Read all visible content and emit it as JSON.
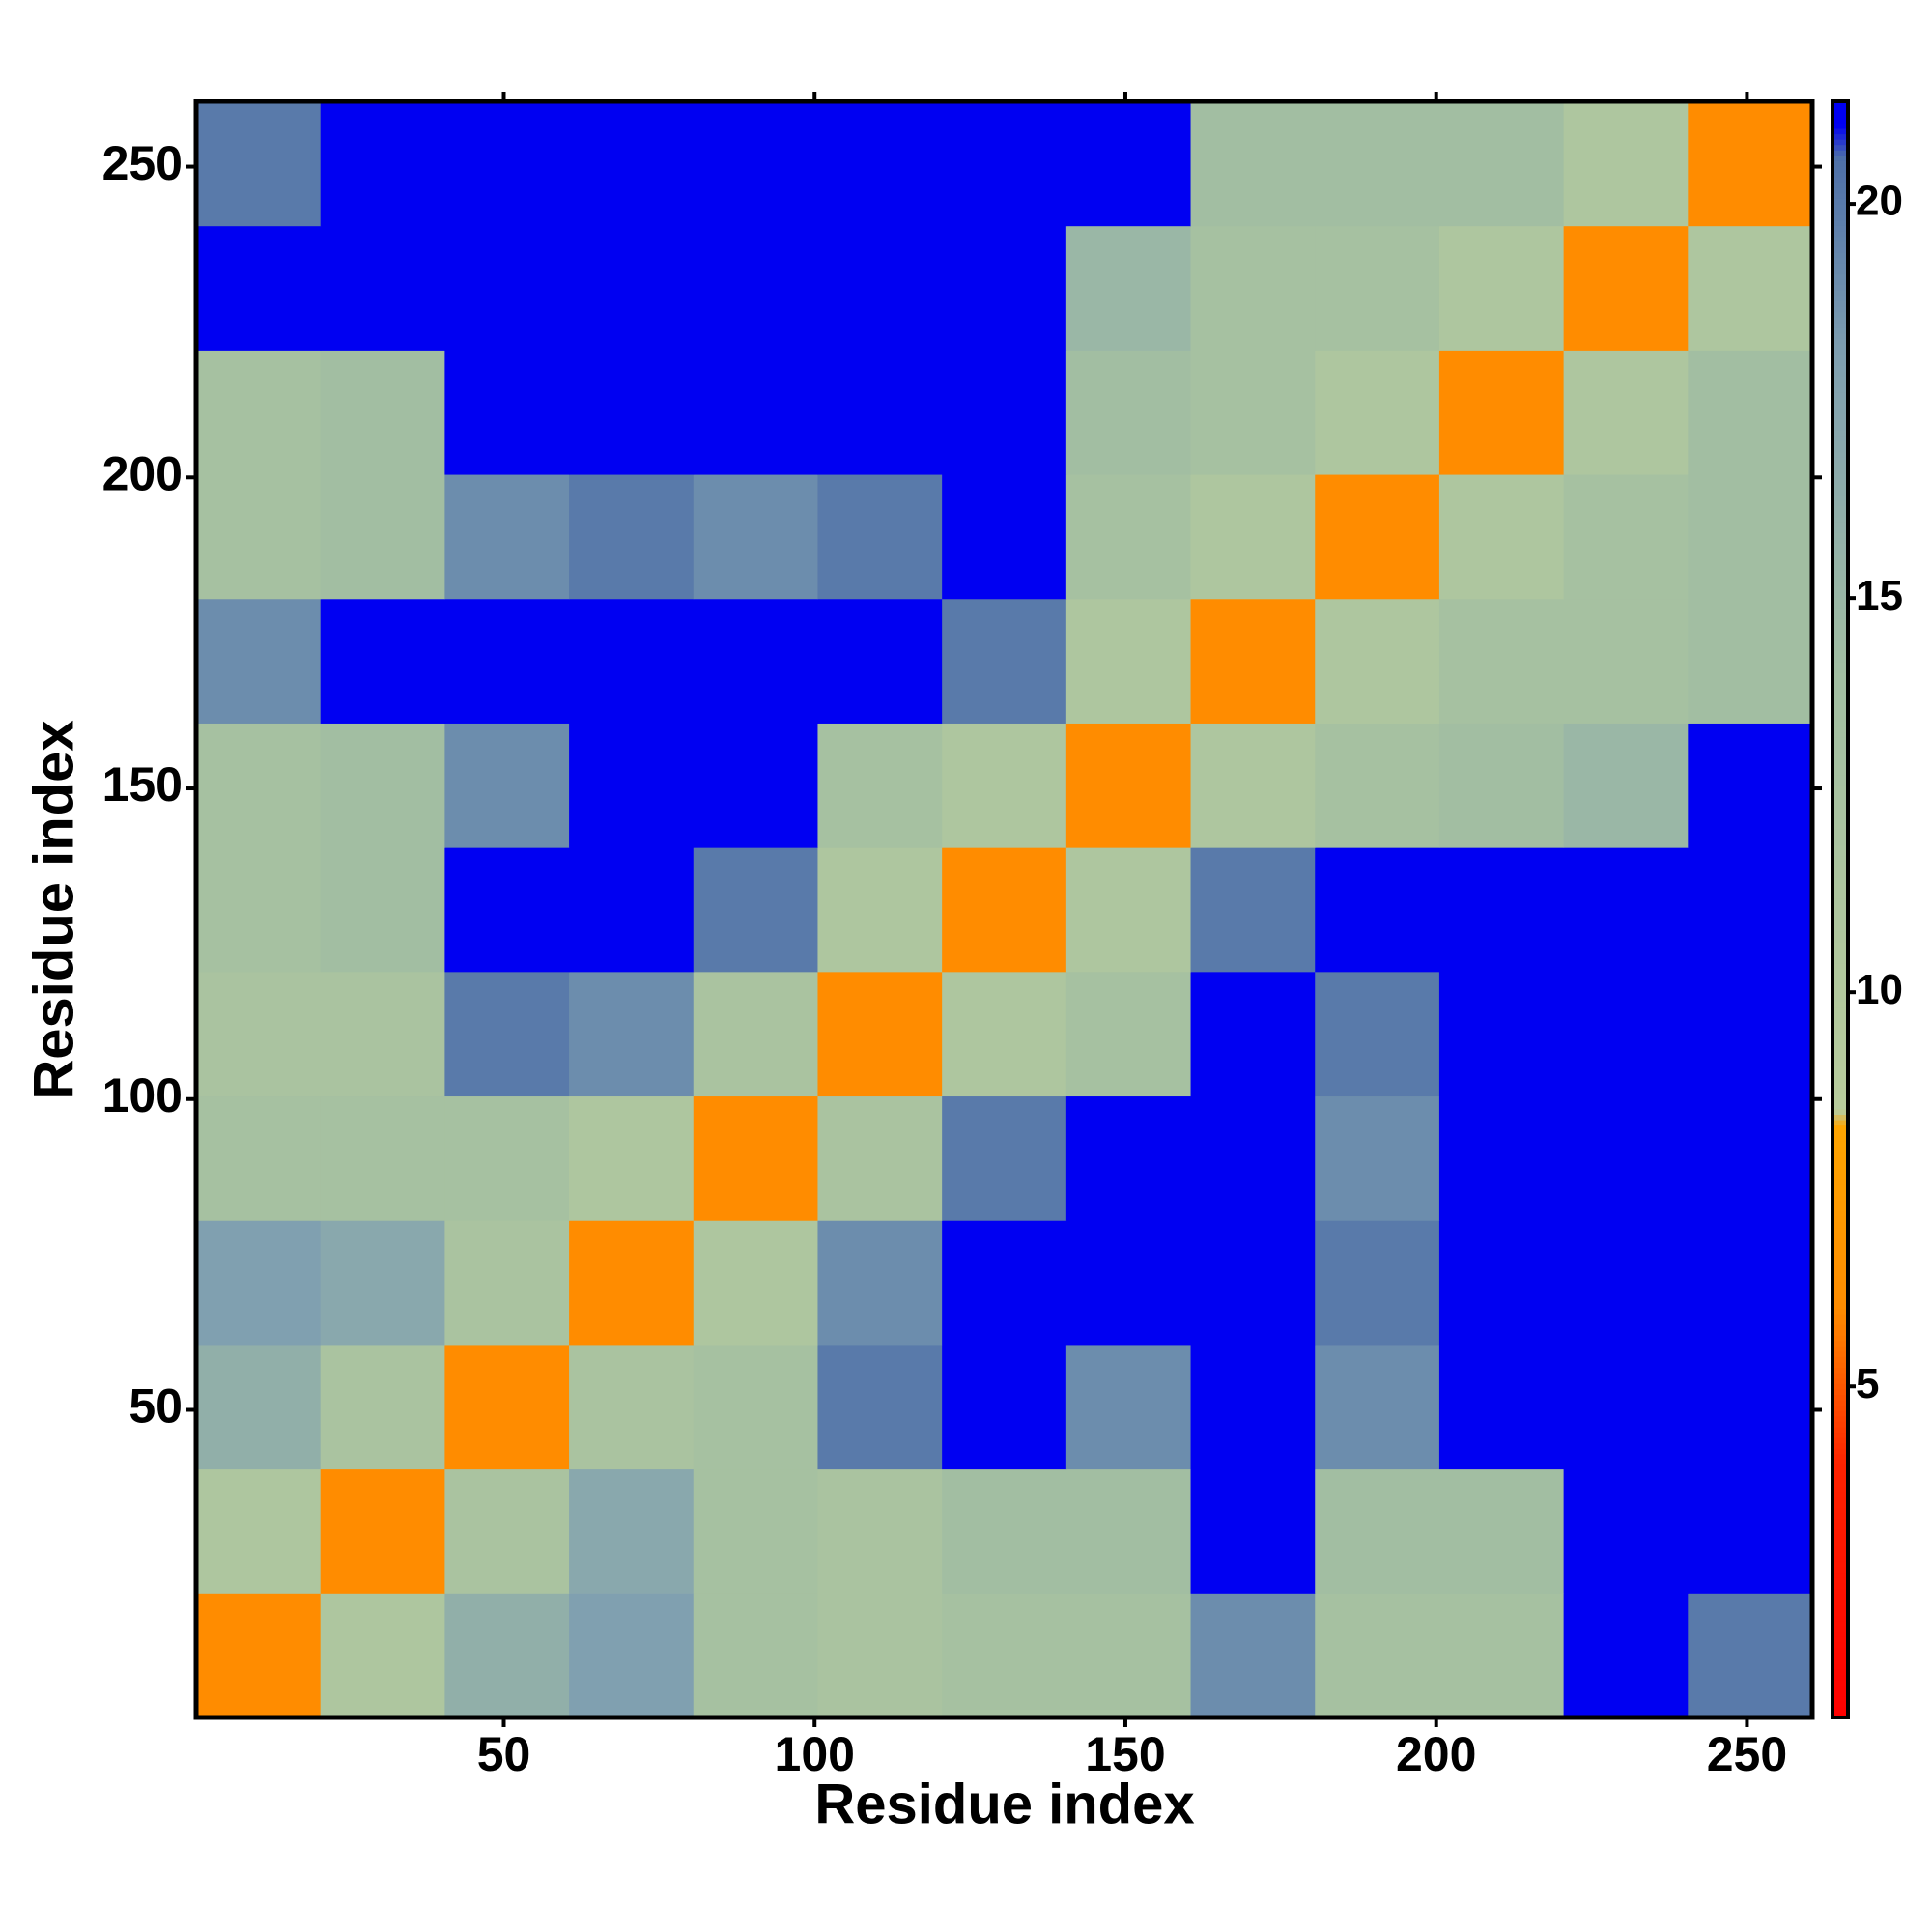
{
  "chart_data": {
    "type": "heatmap",
    "xlabel": "Residue index",
    "ylabel": "Residue index",
    "xbins": [
      0.5,
      20.5,
      40.5,
      60.5,
      80.5,
      100.5,
      120.5,
      140.5,
      160.5,
      180.5,
      200.5,
      220.5,
      240.5,
      260.5
    ],
    "ybins": [
      0.5,
      20.5,
      40.5,
      60.5,
      80.5,
      100.5,
      120.5,
      140.5,
      160.5,
      180.5,
      200.5,
      220.5,
      240.5,
      260.5
    ],
    "z": [
      [
        6,
        11,
        16,
        18,
        13,
        12,
        13,
        13,
        19,
        13,
        13,
        22,
        20
      ],
      [
        11,
        6,
        12,
        17,
        13,
        12,
        14,
        14,
        22,
        14,
        14,
        22,
        22
      ],
      [
        16,
        12,
        6,
        12,
        13,
        20,
        22,
        19,
        21,
        19,
        22,
        22,
        22
      ],
      [
        18,
        17,
        12,
        6,
        11,
        19,
        22,
        22,
        22,
        20,
        22,
        22,
        22
      ],
      [
        13,
        13,
        13,
        11,
        6,
        12,
        20,
        21,
        22,
        19,
        22,
        22,
        22
      ],
      [
        12,
        12,
        20,
        19,
        12,
        6,
        11,
        13,
        22,
        20,
        22,
        22,
        22
      ],
      [
        13,
        14,
        22,
        22,
        20,
        11,
        6,
        11,
        20,
        22,
        22,
        22,
        22
      ],
      [
        13,
        14,
        19,
        22,
        21,
        13,
        11,
        6,
        11,
        13,
        14,
        15,
        22
      ],
      [
        19,
        22,
        21,
        22,
        22,
        22,
        20,
        11,
        6,
        11,
        13,
        13,
        14
      ],
      [
        13,
        14,
        19,
        20,
        19,
        20,
        22,
        13,
        11,
        6,
        11,
        13,
        14
      ],
      [
        13,
        14,
        22,
        22,
        22,
        22,
        22,
        14,
        13,
        11,
        6,
        11,
        14
      ],
      [
        22,
        22,
        22,
        22,
        22,
        22,
        22,
        15,
        13,
        13,
        11,
        6,
        11
      ],
      [
        20,
        22,
        22,
        22,
        22,
        22,
        22,
        22,
        14,
        14,
        14,
        11,
        6
      ]
    ],
    "xlim": [
      0.5,
      260.5
    ],
    "ylim": [
      0.5,
      260.5
    ],
    "xticks": [
      50,
      100,
      150,
      200,
      250
    ],
    "yticks": [
      50,
      100,
      150,
      200,
      250
    ],
    "clim": [
      0.8,
      21.3
    ],
    "cticks": [
      5,
      10,
      15,
      20
    ],
    "colorscale": [
      [
        0.8,
        "#ff0000"
      ],
      [
        4,
        "#ff2200"
      ],
      [
        6,
        "#ff8c00"
      ],
      [
        8.3,
        "#ffa500"
      ],
      [
        8.5,
        "#b8cc9c"
      ],
      [
        14,
        "#a2bea2"
      ],
      [
        18,
        "#80a0b0"
      ],
      [
        20.6,
        "#4d6fa8"
      ],
      [
        21,
        "#0000f2"
      ]
    ]
  }
}
